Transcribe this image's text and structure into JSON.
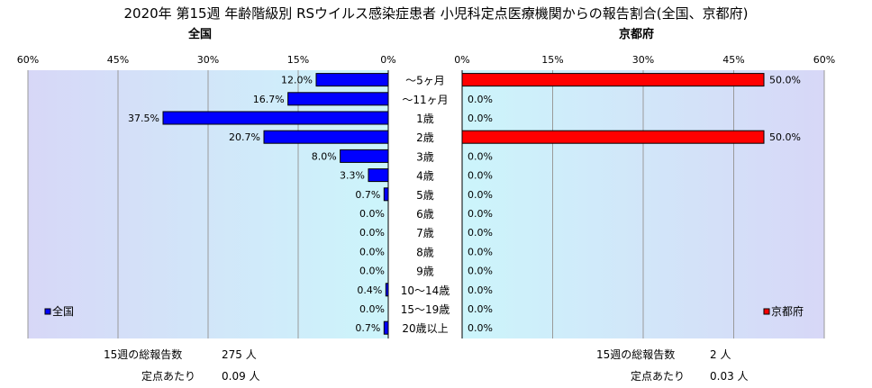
{
  "title": "2020年 第15週 年齢階級別 RSウイルス感染症患者 小児科定点医療機関からの報告割合(全国、京都府)",
  "chart_data": [
    {
      "type": "bar",
      "orientation": "horizontal",
      "direction": "right-to-left",
      "title": "全国",
      "categories": [
        "～5ヶ月",
        "～11ヶ月",
        "1歳",
        "2歳",
        "3歳",
        "4歳",
        "5歳",
        "6歳",
        "7歳",
        "8歳",
        "9歳",
        "10～14歳",
        "15～19歳",
        "20歳以上"
      ],
      "series": [
        {
          "name": "全国",
          "values": [
            12.0,
            16.7,
            37.5,
            20.7,
            8.0,
            3.3,
            0.7,
            0.0,
            0.0,
            0.0,
            0.0,
            0.4,
            0.0,
            0.7
          ],
          "color": "#0000ff"
        }
      ],
      "data_labels": [
        "12.0%",
        "16.7%",
        "37.5%",
        "20.7%",
        "8.0%",
        "3.3%",
        "0.7%",
        "0.0%",
        "0.0%",
        "0.0%",
        "0.0%",
        "0.4%",
        "0.0%",
        "0.7%"
      ],
      "xlim": [
        0,
        60
      ],
      "xticks": [
        "60%",
        "45%",
        "30%",
        "15%",
        "0%"
      ],
      "grid": true,
      "legend": "bottom-left",
      "footer": {
        "total_label": "15週の総報告数",
        "total_value": "275 人",
        "per_label": "定点あたり",
        "per_value": "0.09 人"
      }
    },
    {
      "type": "bar",
      "orientation": "horizontal",
      "direction": "left-to-right",
      "title": "京都府",
      "categories": [
        "～5ヶ月",
        "～11ヶ月",
        "1歳",
        "2歳",
        "3歳",
        "4歳",
        "5歳",
        "6歳",
        "7歳",
        "8歳",
        "9歳",
        "10～14歳",
        "15～19歳",
        "20歳以上"
      ],
      "series": [
        {
          "name": "京都府",
          "values": [
            50.0,
            0.0,
            0.0,
            50.0,
            0.0,
            0.0,
            0.0,
            0.0,
            0.0,
            0.0,
            0.0,
            0.0,
            0.0,
            0.0
          ],
          "color": "#ff0000"
        }
      ],
      "data_labels": [
        "50.0%",
        "0.0%",
        "0.0%",
        "50.0%",
        "0.0%",
        "0.0%",
        "0.0%",
        "0.0%",
        "0.0%",
        "0.0%",
        "0.0%",
        "0.0%",
        "0.0%",
        "0.0%"
      ],
      "xlim": [
        0,
        60
      ],
      "xticks": [
        "0%",
        "15%",
        "30%",
        "45%",
        "60%"
      ],
      "grid": true,
      "legend": "bottom-right",
      "footer": {
        "total_label": "15週の総報告数",
        "total_value": "2 人",
        "per_label": "定点あたり",
        "per_value": "0.03 人"
      }
    }
  ]
}
